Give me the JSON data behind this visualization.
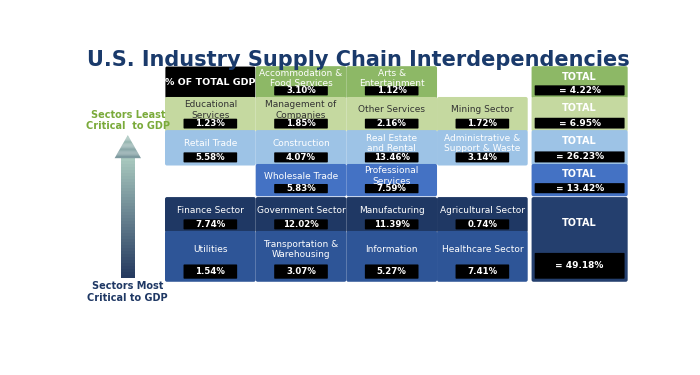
{
  "title": "U.S. Industry Supply Chain Interdependencies",
  "title_color": "#1a3a6b",
  "title_fontsize": 15,
  "arrow_label_top": "Sectors Least\nCritical  to GDP",
  "arrow_label_bottom": "Sectors Most\nCritical to GDP",
  "gdp_label": "% OF TOTAL GDP",
  "rows": [
    {
      "cells": [
        {
          "label": "Accommodation &\nFood Services",
          "pct": "3.10%",
          "col": 1,
          "color": "#8db866",
          "text_color": "white"
        },
        {
          "label": "Arts &\nEntertainment",
          "pct": "1.12%",
          "col": 2,
          "color": "#8db866",
          "text_color": "white"
        }
      ],
      "total": "= 4.22%",
      "total_color": "#8db866"
    },
    {
      "cells": [
        {
          "label": "Educational\nServices",
          "pct": "1.23%",
          "col": 0,
          "color": "#c5d9a0",
          "text_color": "#333333"
        },
        {
          "label": "Management of\nCompanies",
          "pct": "1.85%",
          "col": 1,
          "color": "#c5d9a0",
          "text_color": "#333333"
        },
        {
          "label": "Other Services",
          "pct": "2.16%",
          "col": 2,
          "color": "#c5d9a0",
          "text_color": "#333333"
        },
        {
          "label": "Mining Sector",
          "pct": "1.72%",
          "col": 3,
          "color": "#c5d9a0",
          "text_color": "#333333"
        }
      ],
      "total": "= 6.95%",
      "total_color": "#c5d9a0"
    },
    {
      "cells": [
        {
          "label": "Retail Trade",
          "pct": "5.58%",
          "col": 0,
          "color": "#9dc3e6",
          "text_color": "white"
        },
        {
          "label": "Construction",
          "pct": "4.07%",
          "col": 1,
          "color": "#9dc3e6",
          "text_color": "white"
        },
        {
          "label": "Real Estate\nand Rental",
          "pct": "13.46%",
          "col": 2,
          "color": "#9dc3e6",
          "text_color": "white"
        },
        {
          "label": "Administrative &\nSupport & Waste",
          "pct": "3.14%",
          "col": 3,
          "color": "#9dc3e6",
          "text_color": "white"
        }
      ],
      "total": "= 26.23%",
      "total_color": "#9dc3e6"
    },
    {
      "cells": [
        {
          "label": "Wholesale Trade",
          "pct": "5.83%",
          "col": 1,
          "color": "#4472c4",
          "text_color": "white"
        },
        {
          "label": "Professional\nServices",
          "pct": "7.59%",
          "col": 2,
          "color": "#4472c4",
          "text_color": "white"
        }
      ],
      "total": "= 13.42%",
      "total_color": "#4472c4"
    },
    {
      "cells": [
        {
          "label": "Finance Sector",
          "pct": "7.74%",
          "col": 0,
          "color": "#1f3864",
          "text_color": "white"
        },
        {
          "label": "Government Sector",
          "pct": "12.02%",
          "col": 1,
          "color": "#1f3864",
          "text_color": "white"
        },
        {
          "label": "Manufacturing",
          "pct": "11.39%",
          "col": 2,
          "color": "#1f3864",
          "text_color": "white"
        },
        {
          "label": "Agricultural Sector",
          "pct": "0.74%",
          "col": 3,
          "color": "#1f3864",
          "text_color": "white"
        }
      ],
      "total": "= 49.18%",
      "total_color": "#243f6e"
    },
    {
      "cells": [
        {
          "label": "Utilities",
          "pct": "1.54%",
          "col": 0,
          "color": "#2e5597",
          "text_color": "white"
        },
        {
          "label": "Transportation &\nWarehousing",
          "pct": "3.07%",
          "col": 1,
          "color": "#2e5597",
          "text_color": "white"
        },
        {
          "label": "Information",
          "pct": "5.27%",
          "col": 2,
          "color": "#2e5597",
          "text_color": "white"
        },
        {
          "label": "Healthcare Sector",
          "pct": "7.41%",
          "col": 3,
          "color": "#2e5597",
          "text_color": "white"
        }
      ],
      "total": null,
      "total_color": null
    }
  ]
}
